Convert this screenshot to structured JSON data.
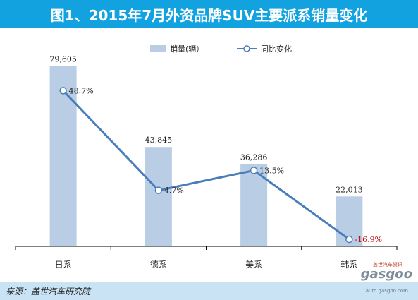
{
  "header": {
    "title": "图1、2015年7月外资品牌SUV主要派系销量变化"
  },
  "footer": {
    "source": "来源：盖世汽车研究院",
    "watermark_brand": "gasgoo",
    "watermark_url": "auto.gasgoo.com",
    "watermark_cn": "盖世汽车资讯"
  },
  "colors": {
    "bar": "#b9cde5",
    "line": "#4a7ebb",
    "negative_label": "#c00000",
    "axis": "#000000"
  },
  "chart_data": {
    "type": "bar",
    "categories": [
      "日系",
      "德系",
      "美系",
      "韩系"
    ],
    "series": [
      {
        "name": "销量(辆）",
        "type": "bar",
        "values": [
          79605,
          43845,
          36286,
          22013
        ],
        "labels": [
          "79,605",
          "43,845",
          "36,286",
          "22,013"
        ]
      },
      {
        "name": "同比变化",
        "type": "line",
        "values": [
          48.7,
          4.7,
          13.5,
          -16.9
        ],
        "labels": [
          "48.7%",
          "4.7%",
          "13.5%",
          "-16.9%"
        ]
      }
    ],
    "ylim": [
      0,
      90000
    ],
    "y2lim": [
      -20,
      70
    ],
    "legend": "top-right",
    "grid": false
  }
}
